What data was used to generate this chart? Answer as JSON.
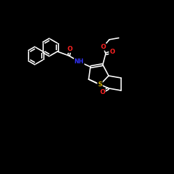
{
  "background_color": "#000000",
  "bond_color": "#ffffff",
  "atom_colors": {
    "O": "#ff2222",
    "N": "#3333ff",
    "S": "#ccaa00",
    "C": "#ffffff"
  },
  "figsize": [
    2.5,
    2.5
  ],
  "dpi": 100,
  "lw": 1.2,
  "doff": 0.055,
  "ring_r": 0.48,
  "xlim": [
    0,
    10
  ],
  "ylim": [
    0,
    10
  ]
}
